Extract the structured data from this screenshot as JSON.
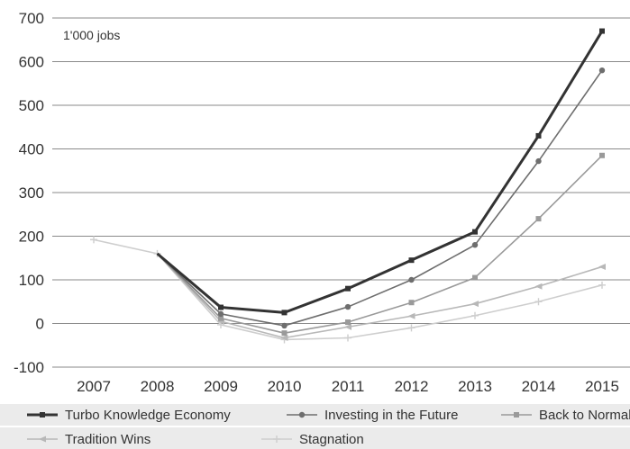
{
  "chart_data": {
    "type": "line",
    "unit_label": "1'000 jobs",
    "x": [
      "2007",
      "2008",
      "2009",
      "2010",
      "2011",
      "2012",
      "2013",
      "2014",
      "2015"
    ],
    "ylim": [
      -100,
      700
    ],
    "yticks": [
      "-100",
      "0",
      "100",
      "200",
      "300",
      "400",
      "500",
      "600",
      "700"
    ],
    "grid": true,
    "legend_position": "bottom",
    "series": [
      {
        "name": "Turbo Knowledge Economy",
        "color": "#333333",
        "marker": "square",
        "values": [
          null,
          160,
          37,
          25,
          80,
          145,
          210,
          430,
          670
        ]
      },
      {
        "name": "Investing in the Future",
        "color": "#6e6e6e",
        "marker": "circle",
        "values": [
          null,
          160,
          22,
          -5,
          38,
          100,
          180,
          372,
          580
        ]
      },
      {
        "name": "Back to Normal",
        "color": "#9a9a9a",
        "marker": "square",
        "values": [
          null,
          160,
          12,
          -22,
          3,
          48,
          105,
          240,
          385
        ]
      },
      {
        "name": "Tradition Wins",
        "color": "#b8b8b8",
        "marker": "triangle",
        "values": [
          null,
          160,
          5,
          -33,
          -8,
          17,
          45,
          85,
          130
        ]
      },
      {
        "name": "Stagnation",
        "color": "#cecece",
        "marker": "cross",
        "values": [
          192,
          160,
          -3,
          -37,
          -33,
          -10,
          18,
          50,
          88
        ]
      }
    ]
  }
}
